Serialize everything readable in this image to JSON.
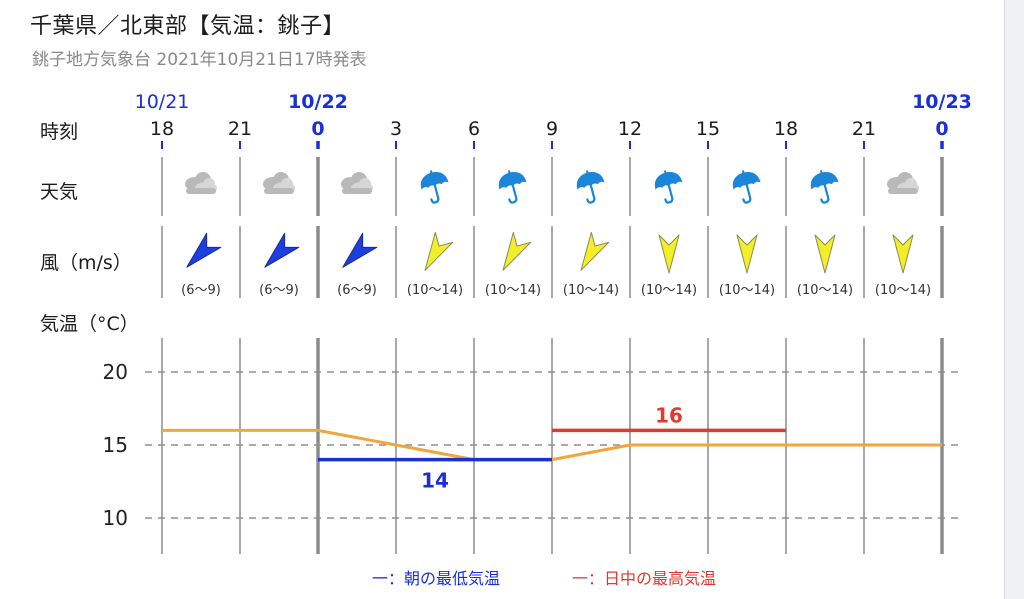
{
  "header": {
    "title": "千葉県／北東部【気温：銚子】",
    "subtitle": "銚子地方気象台 2021年10月21日17時発表"
  },
  "rows": {
    "time_label": "時刻",
    "weather_label": "天気",
    "wind_label": "風（m/s）",
    "temp_label": "気温（°C）"
  },
  "legend": {
    "min_label": "一：朝の最低気温",
    "max_label": "一：日中の最高気温"
  },
  "colors": {
    "min_line": "#1a2fd6",
    "max_line": "#e03a2f",
    "temp_line": "#f0a63c",
    "day_label": "#1a2fd6",
    "wind_blue": "#1d3fe0",
    "wind_yellow": "#f3ee2a",
    "umbrella": "#1b86d8"
  },
  "chart_data": {
    "type": "line",
    "date_labels": [
      {
        "slot": 0,
        "text": "10/21",
        "bold": false
      },
      {
        "slot": 2,
        "text": "10/22",
        "bold": true
      },
      {
        "slot": 10,
        "text": "10/23",
        "bold": true
      }
    ],
    "hours": [
      "18",
      "21",
      "0",
      "3",
      "6",
      "9",
      "12",
      "15",
      "18",
      "21",
      "0"
    ],
    "midnight_slots": [
      2,
      10
    ],
    "weather": [
      "cloudy-icon",
      "cloudy-icon",
      "cloudy-icon",
      "umbrella-icon",
      "umbrella-icon",
      "umbrella-icon",
      "umbrella-icon",
      "umbrella-icon",
      "umbrella-icon",
      "cloudy-icon"
    ],
    "wind": [
      {
        "dir_deg": 45,
        "color": "blue",
        "range": "(6〜9)"
      },
      {
        "dir_deg": 45,
        "color": "blue",
        "range": "(6〜9)"
      },
      {
        "dir_deg": 45,
        "color": "blue",
        "range": "(6〜9)"
      },
      {
        "dir_deg": 30,
        "color": "yellow",
        "range": "(10〜14)"
      },
      {
        "dir_deg": 30,
        "color": "yellow",
        "range": "(10〜14)"
      },
      {
        "dir_deg": 30,
        "color": "yellow",
        "range": "(10〜14)"
      },
      {
        "dir_deg": 0,
        "color": "yellow",
        "range": "(10〜14)"
      },
      {
        "dir_deg": 0,
        "color": "yellow",
        "range": "(10〜14)"
      },
      {
        "dir_deg": 0,
        "color": "yellow",
        "range": "(10〜14)"
      },
      {
        "dir_deg": 0,
        "color": "yellow",
        "range": "(10〜14)"
      }
    ],
    "temp_series": {
      "x": [
        0,
        2,
        4,
        5,
        6,
        10
      ],
      "y": [
        16,
        16,
        14,
        14,
        15,
        15
      ]
    },
    "min_temp": {
      "value": 14,
      "label": "14",
      "from_slot": 2,
      "to_slot": 5
    },
    "max_temp": {
      "value": 16,
      "label": "16",
      "from_slot": 5,
      "to_slot": 8
    },
    "yticks": [
      10,
      15,
      20
    ],
    "ylim": [
      8,
      22.5
    ]
  }
}
